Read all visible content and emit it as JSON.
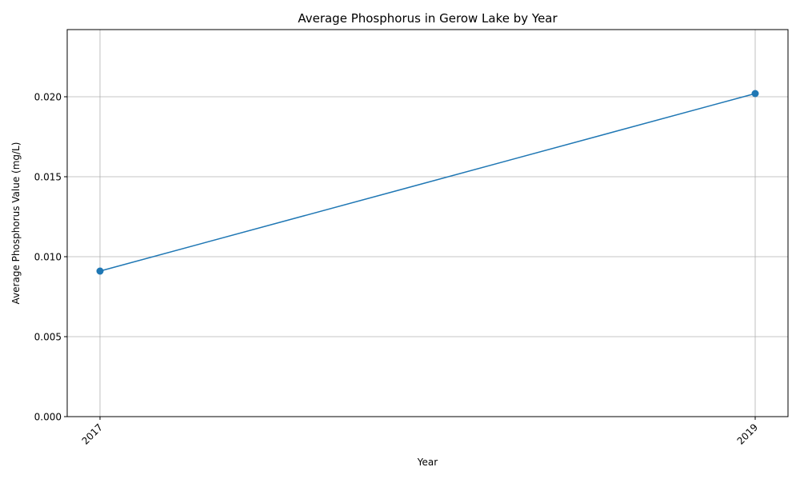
{
  "chart_data": {
    "type": "line",
    "title": "Average Phosphorus in Gerow Lake by Year",
    "xlabel": "Year",
    "ylabel": "Average Phosphorus Value (mg/L)",
    "x": [
      "2017",
      "2019"
    ],
    "series": [
      {
        "values": [
          0.0091,
          0.0202
        ],
        "color": "#1f77b4",
        "marker": "circle"
      }
    ],
    "ylim": [
      0,
      0.0242
    ],
    "yticks": [
      0.0,
      0.005,
      0.01,
      0.015,
      0.02
    ],
    "ytick_labels": [
      "0.000",
      "0.005",
      "0.010",
      "0.015",
      "0.020"
    ],
    "xtick_labels": [
      "2017",
      "2019"
    ],
    "grid": true,
    "grid_color": "#b0b0b0",
    "legend": "none"
  }
}
